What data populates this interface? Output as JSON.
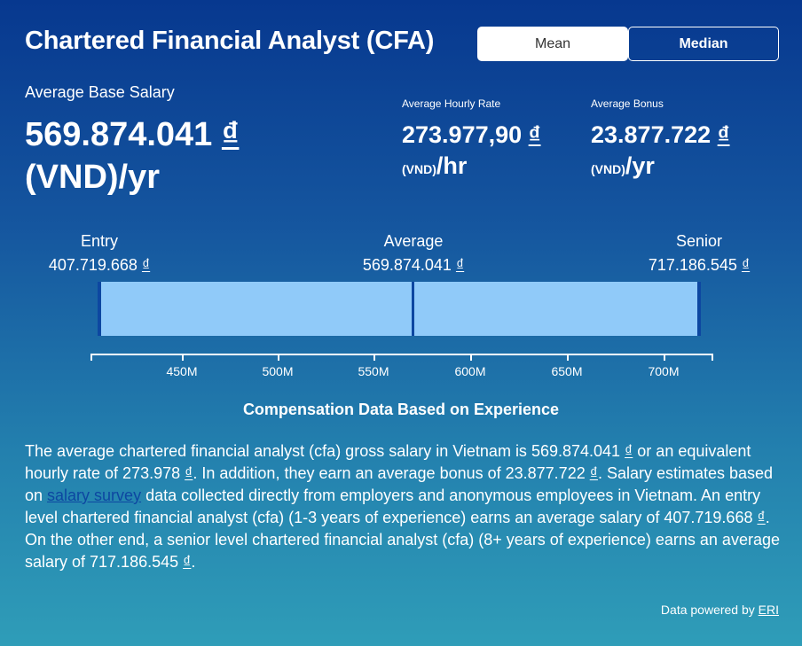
{
  "header": {
    "title": "Chartered Financial Analyst (CFA)",
    "toggle": {
      "mean_label": "Mean",
      "median_label": "Median",
      "selected": "Mean"
    }
  },
  "base_salary": {
    "label": "Average Base Salary",
    "amount": "569.874.041",
    "currency_symbol": "₫",
    "unit": "(VND)/yr"
  },
  "hourly_rate": {
    "label": "Average Hourly Rate",
    "amount": "273.977,90",
    "currency_symbol": "₫",
    "unit_code": "(VND)",
    "unit_period": "/hr"
  },
  "bonus": {
    "label": "Average Bonus",
    "amount": "23.877.722",
    "currency_symbol": "₫",
    "unit_code": "(VND)",
    "unit_period": "/yr"
  },
  "range": {
    "entry": {
      "label": "Entry",
      "value": "407.719.668",
      "currency": "₫"
    },
    "average": {
      "label": "Average",
      "value": "569.874.041",
      "currency": "₫"
    },
    "senior": {
      "label": "Senior",
      "value": "717.186.545",
      "currency": "₫"
    },
    "axis_ticks": [
      "450M",
      "500M",
      "550M",
      "600M",
      "650M",
      "700M"
    ]
  },
  "chart_data": {
    "type": "bar",
    "title": "Compensation Data Based on Experience",
    "categories": [
      "Entry",
      "Average",
      "Senior"
    ],
    "values": [
      407719668,
      569874041,
      717186545
    ],
    "xlim": [
      403000000,
      722000000
    ]
  },
  "description": {
    "part1": "The average chartered financial analyst (cfa) gross salary in Vietnam is 569.874.041 ",
    "cur1": "₫",
    "part2": " or an equivalent hourly rate of 273.978 ",
    "cur2": "₫",
    "part3": ". In addition, they earn an average bonus of 23.877.722 ",
    "cur3": "₫",
    "part4": ". Salary estimates based on ",
    "link_text": "salary survey",
    "part5": " data collected directly from employers and anonymous employees in Vietnam. An entry level chartered financial analyst (cfa) (1-3 years of experience) earns an average salary of 407.719.668 ",
    "cur4": "₫",
    "part6": ". On the other end, a senior level chartered financial analyst (cfa) (8+ years of experience) earns an average salary of 717.186.545 ",
    "cur5": "₫",
    "part7": "."
  },
  "footer": {
    "prefix": "Data powered by ",
    "link_text": "ERI"
  }
}
